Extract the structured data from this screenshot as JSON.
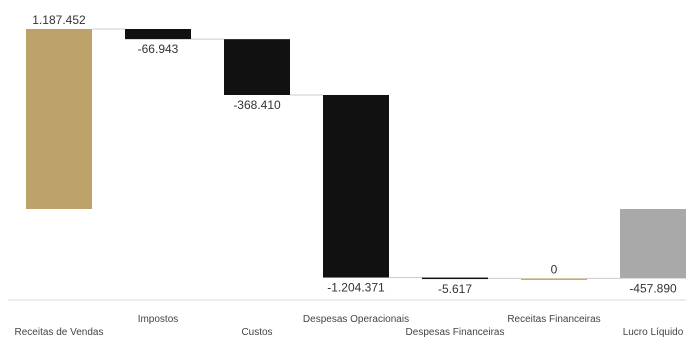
{
  "chart_data": {
    "type": "waterfall",
    "title": "",
    "xlabel": "",
    "ylabel": "",
    "categories": [
      "Receitas de Vendas",
      "Impostos",
      "Custos",
      "Despesas Operacionais",
      "Despesas Financeiras",
      "Receitas Financeiras",
      "Lucro Líquido"
    ],
    "values": [
      1187452,
      -66943,
      -368410,
      -1204371,
      -5617,
      0,
      -457890
    ],
    "value_labels": [
      "1.187.452",
      "-66.943",
      "-368.410",
      "-1.204.371",
      "-5.617",
      "0",
      "-457.890"
    ],
    "is_total": [
      false,
      false,
      false,
      false,
      false,
      false,
      true
    ],
    "colors": {
      "first": "#bda36a",
      "negative": "#111111",
      "zero": "#bda36a",
      "total": "#a9a9a9",
      "connector": "#cccccc",
      "baseline": "#d9d9d9"
    }
  }
}
